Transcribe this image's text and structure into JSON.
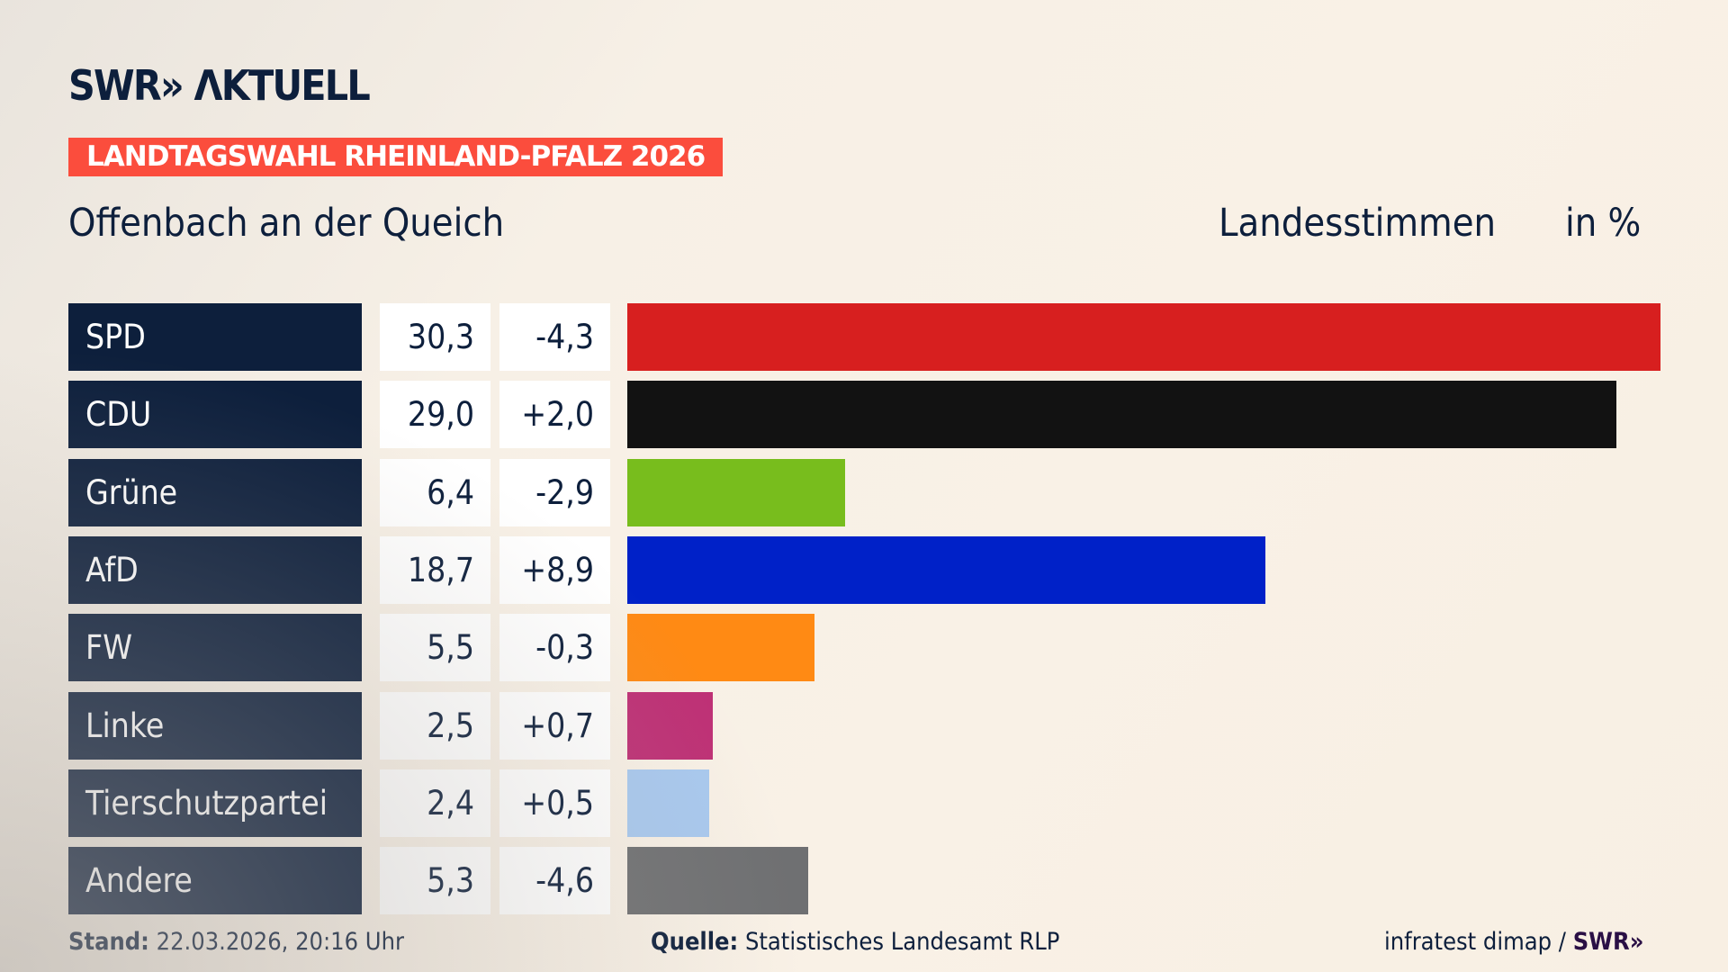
{
  "logo": "SWR» ΛKTUELL",
  "badge": "LANDTAGSWAHL RHEINLAND-PFALZ 2026",
  "location": "Offenbach an der Queich",
  "vote_type": "Landesstimmen",
  "unit": "in %",
  "chart_data": {
    "type": "bar",
    "orientation": "horizontal",
    "categories": [
      "SPD",
      "CDU",
      "Grüne",
      "AfD",
      "FW",
      "Linke",
      "Tierschutzpartei",
      "Andere"
    ],
    "values": [
      "30,3",
      "29,0",
      "6,4",
      "18,7",
      "5,5",
      "2,5",
      "2,4",
      "5,3"
    ],
    "diffs": [
      "-4,3",
      "+2,0",
      "-2,9",
      "+8,9",
      "-0,3",
      "+0,7",
      "+0,5",
      "-4,6"
    ],
    "colors": [
      "#d71f1f",
      "#121212",
      "#78bd1d",
      "#0021c8",
      "#ff8a14",
      "#be3075",
      "#a9c9ef",
      "#6f7072"
    ]
  },
  "footer": {
    "stand_label": "Stand:",
    "stand_value": "22.03.2026, 20:16 Uhr",
    "source_label": "Quelle:",
    "source_value": "Statistisches Landesamt RLP",
    "credit": "infratest dimap /",
    "credit_logo": "SWR»"
  }
}
